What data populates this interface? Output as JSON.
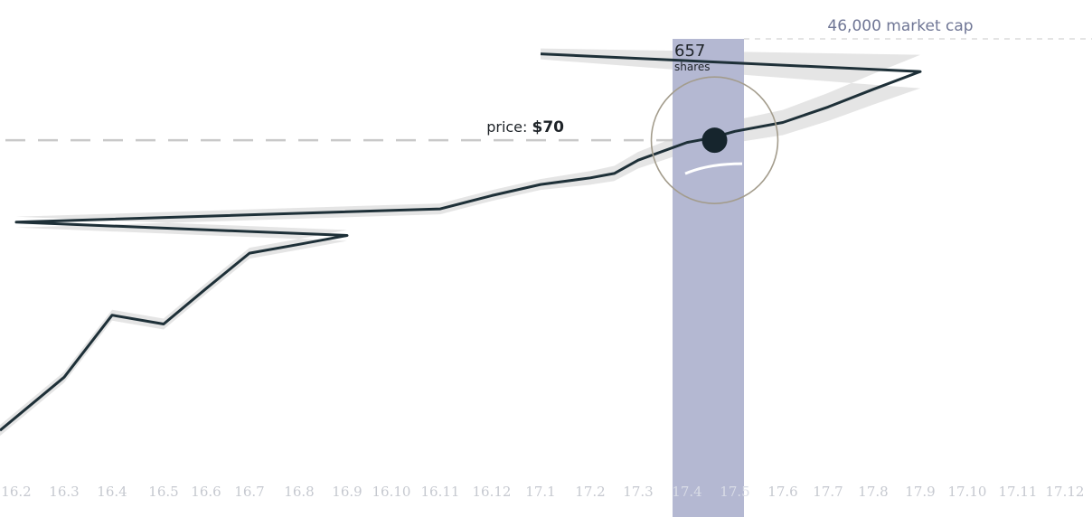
{
  "chart_data": {
    "type": "line",
    "x_labels": [
      "16.2",
      "16.3",
      "16.4",
      "16.5",
      "16.6",
      "16.7",
      "16.8",
      "16.9",
      "16.10",
      "16.11",
      "16.12",
      "17.1",
      "17.2",
      "17.3",
      "17.4",
      "17.5",
      "17.6",
      "17.7",
      "17.8",
      "17.9",
      "17.10",
      "17.11",
      "17.12"
    ],
    "series": [
      {
        "points": [
          {
            "x": 16.2,
            "y": 12
          },
          {
            "x": 16.3,
            "y": 23
          },
          {
            "x": 16.4,
            "y": 37
          },
          {
            "x": 16.5,
            "y": 35
          },
          {
            "x": 16.6,
            "y": 43
          },
          {
            "x": 16.7,
            "y": 51
          },
          {
            "x": 16.8,
            "y": 53
          },
          {
            "x": 16.9,
            "y": 55
          },
          {
            "x": 16.1,
            "y": 58
          },
          {
            "x": 16.11,
            "y": 61
          },
          {
            "x": 16.12,
            "y": 64
          },
          {
            "x": 17.1,
            "y": 66.5
          },
          {
            "x": 17.2,
            "y": 68
          },
          {
            "x": 17.25,
            "y": 69
          },
          {
            "x": 17.3,
            "y": 72
          },
          {
            "x": 17.4,
            "y": 76
          },
          {
            "x": 17.45,
            "y": 77
          },
          {
            "x": 17.5,
            "y": 78.5
          },
          {
            "x": 17.6,
            "y": 80.5
          },
          {
            "x": 17.7,
            "y": 84
          },
          {
            "x": 17.8,
            "y": 88
          },
          {
            "x": 17.9,
            "y": 92
          },
          {
            "x": 17.1,
            "y": 96
          }
        ]
      }
    ],
    "highlight": {
      "x_start": 17.4,
      "x_end": 17.5,
      "shares_value": "657",
      "shares_label": "shares",
      "price_label": "price: ",
      "price_value": "$70",
      "price_y": 76.5,
      "market_cap_label": "46,000 market cap"
    },
    "ylim": [
      0,
      100
    ],
    "colors": {
      "line": "#1e3038",
      "band": "#e5e5e5",
      "highlight_band": "#b4b8d2",
      "circle": "#a39c8c",
      "dot": "#16252d",
      "dashes": "#c9c9c9",
      "ticks": "#c6c9d0",
      "market_cap": "#6f7695"
    }
  }
}
